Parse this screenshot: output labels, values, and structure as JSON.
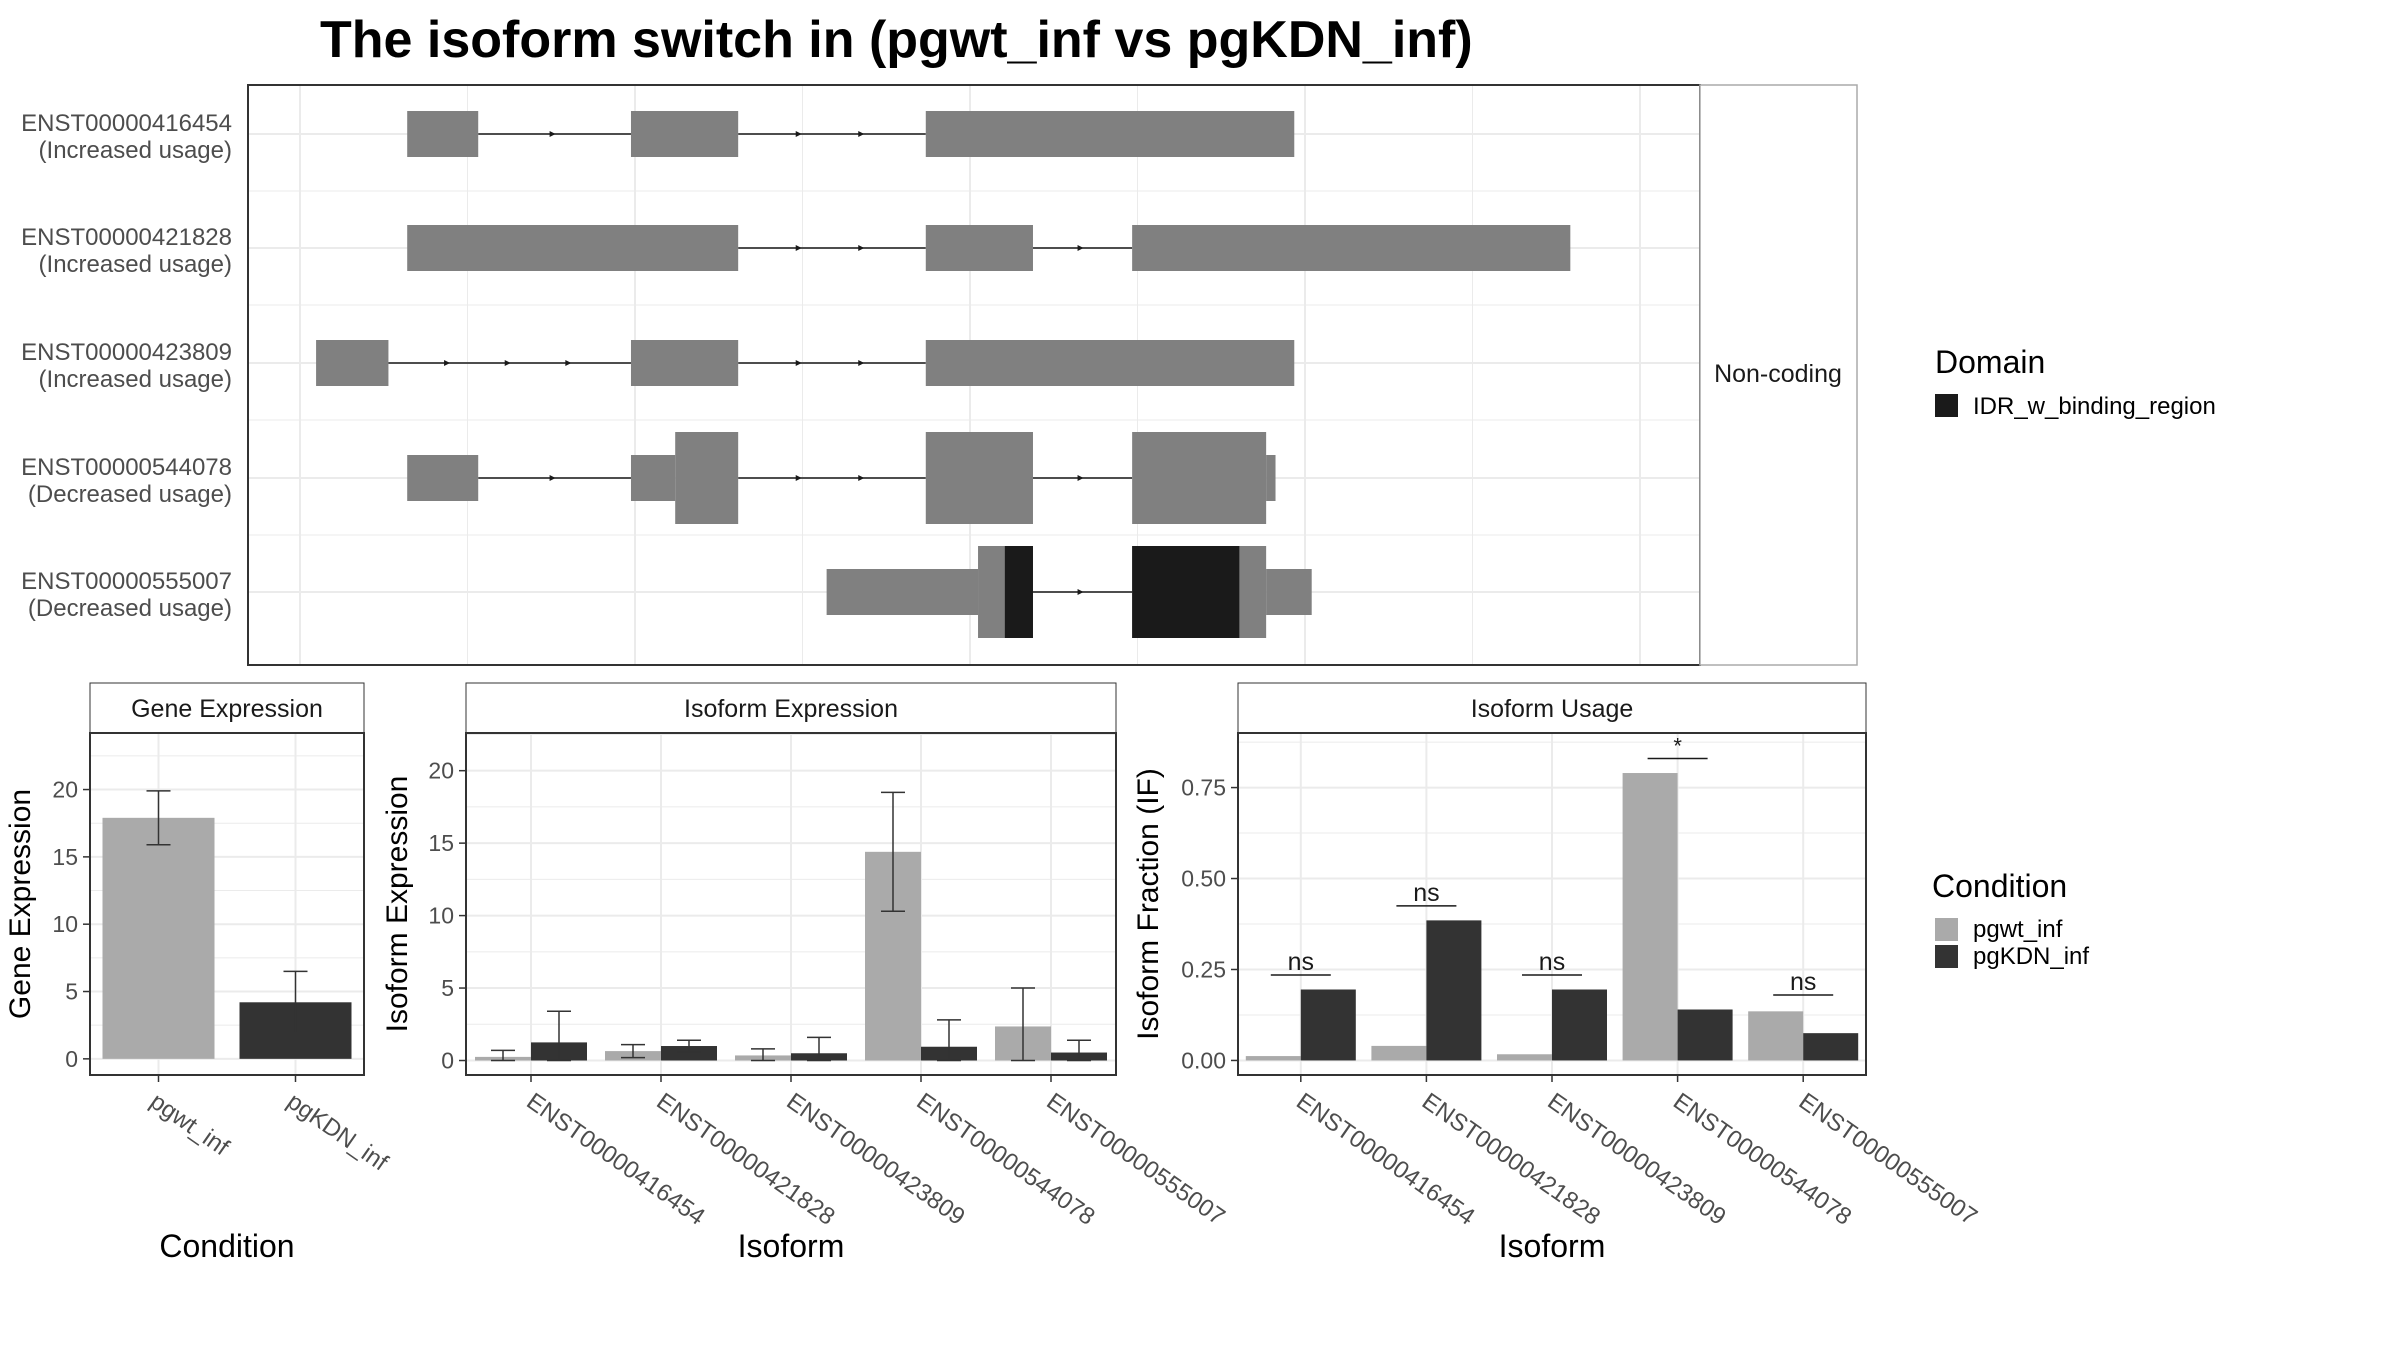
{
  "title": "The isoform switch in  (pgwt_inf vs pgKDN_inf)",
  "colors": {
    "exon": "#808080",
    "domain": "#1a1a1a",
    "pgwt_inf": "#aaaaaa",
    "pgKDN_inf": "#333333",
    "grid": "#ebebeb",
    "panel_border": "#333333",
    "strip_border": "#aaaaaa",
    "axis_text": "#4d4d4d"
  },
  "conditions": [
    "pgwt_inf",
    "pgKDN_inf"
  ],
  "structure": {
    "strip_label": "Non-coding",
    "x_range": [
      0,
      1000
    ],
    "transcripts": [
      {
        "id": "ENST00000416454",
        "usage": "(Increased usage)",
        "exons": [
          [
            80,
            133
          ],
          [
            247,
            327
          ],
          [
            467,
            742
          ]
        ],
        "domains": []
      },
      {
        "id": "ENST00000421828",
        "usage": "(Increased usage)",
        "exons": [
          [
            80,
            327
          ],
          [
            467,
            547
          ],
          [
            621,
            948
          ]
        ],
        "domains": []
      },
      {
        "id": "ENST00000423809",
        "usage": "(Increased usage)",
        "exons": [
          [
            12,
            66
          ],
          [
            247,
            327
          ],
          [
            467,
            742
          ]
        ],
        "domains": []
      },
      {
        "id": "ENST00000544078",
        "usage": "(Decreased usage)",
        "exons": [
          [
            80,
            133
          ],
          [
            247,
            280,
            "nc"
          ],
          [
            280,
            327,
            "c"
          ],
          [
            467,
            547,
            "c"
          ],
          [
            621,
            721,
            "c"
          ],
          [
            721,
            728,
            "nc"
          ]
        ],
        "domains": []
      },
      {
        "id": "ENST00000555007",
        "usage": "(Decreased usage)",
        "exons": [
          [
            393,
            506,
            "nc"
          ],
          [
            506,
            547,
            "c"
          ],
          [
            621,
            721,
            "c"
          ],
          [
            721,
            755,
            "nc"
          ]
        ],
        "domains": [
          [
            526,
            547
          ],
          [
            621,
            701
          ]
        ]
      }
    ]
  },
  "legend_domain": {
    "title": "Domain",
    "items": [
      {
        "label": "IDR_w_binding_region"
      }
    ]
  },
  "legend_condition": {
    "title": "Condition",
    "items": [
      {
        "label": "pgwt_inf"
      },
      {
        "label": "pgKDN_inf"
      }
    ]
  },
  "chart_data": [
    {
      "type": "bar",
      "title": "Gene Expression",
      "xlabel": "Condition",
      "ylabel": "Gene Expression",
      "ylim": [
        -1.2,
        24.2
      ],
      "yticks": [
        0,
        5,
        10,
        15,
        20
      ],
      "categories": [
        "pgwt_inf",
        "pgKDN_inf"
      ],
      "values": [
        17.9,
        4.2
      ],
      "errors": [
        [
          15.9,
          19.9
        ],
        [
          1.9,
          6.5
        ]
      ]
    },
    {
      "type": "bar",
      "title": "Isoform Expression",
      "xlabel": "Isoform",
      "ylabel": "Isoform Expression",
      "ylim": [
        -1.0,
        22.6
      ],
      "yticks": [
        0,
        5,
        10,
        15,
        20
      ],
      "categories": [
        "ENST00000416454",
        "ENST00000421828",
        "ENST00000423809",
        "ENST00000544078",
        "ENST00000555007"
      ],
      "series": [
        {
          "name": "pgwt_inf",
          "values": [
            0.25,
            0.65,
            0.35,
            14.4,
            2.35
          ],
          "errors": [
            [
              0.0,
              0.7
            ],
            [
              0.2,
              1.1
            ],
            [
              0.0,
              0.8
            ],
            [
              10.3,
              18.5
            ],
            [
              0.0,
              5.0
            ]
          ]
        },
        {
          "name": "pgKDN_inf",
          "values": [
            1.25,
            1.0,
            0.5,
            0.95,
            0.55
          ],
          "errors": [
            [
              0.0,
              3.4
            ],
            [
              0.6,
              1.4
            ],
            [
              0.0,
              1.6
            ],
            [
              0.0,
              2.8
            ],
            [
              0.0,
              1.4
            ]
          ]
        }
      ]
    },
    {
      "type": "bar",
      "title": "Isoform Usage",
      "xlabel": "Isoform",
      "ylabel": "Isoform Fraction (IF)",
      "ylim": [
        -0.04,
        0.9
      ],
      "yticks": [
        "0.00",
        "0.25",
        "0.50",
        "0.75"
      ],
      "categories": [
        "ENST00000416454",
        "ENST00000421828",
        "ENST00000423809",
        "ENST00000544078",
        "ENST00000555007"
      ],
      "series": [
        {
          "name": "pgwt_inf",
          "values": [
            0.012,
            0.04,
            0.017,
            0.79,
            0.135
          ]
        },
        {
          "name": "pgKDN_inf",
          "values": [
            0.195,
            0.385,
            0.195,
            0.14,
            0.075
          ]
        }
      ],
      "annotations": [
        {
          "text": "ns",
          "y": 0.235
        },
        {
          "text": "ns",
          "y": 0.425
        },
        {
          "text": "ns",
          "y": 0.235
        },
        {
          "text": "*",
          "y": 0.83
        },
        {
          "text": "ns",
          "y": 0.18
        }
      ]
    }
  ]
}
